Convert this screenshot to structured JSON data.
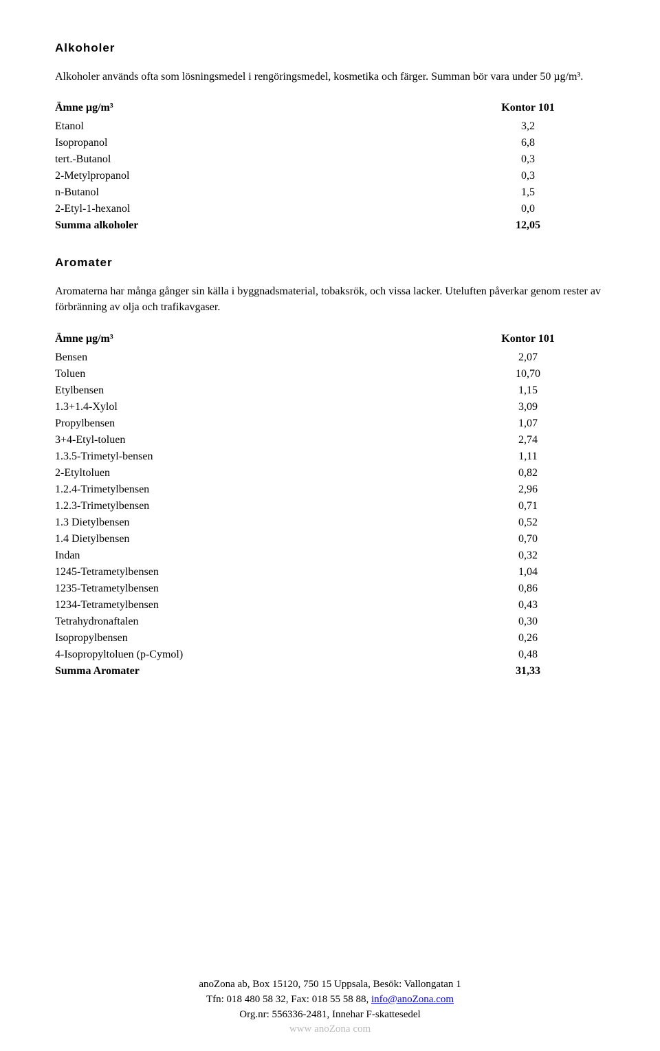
{
  "alkoholer": {
    "title": "Alkoholer",
    "intro": "Alkoholer används ofta som lösningsmedel i rengöringsmedel, kosmetika och färger. Summan bör vara under 50 µg/m³.",
    "header_name": "Ämne µg/m³",
    "header_val": "Kontor 101",
    "rows": [
      {
        "name": "Etanol",
        "val": "3,2"
      },
      {
        "name": "Isopropanol",
        "val": "6,8"
      },
      {
        "name": "tert.-Butanol",
        "val": "0,3"
      },
      {
        "name": "2-Metylpropanol",
        "val": "0,3"
      },
      {
        "name": "n-Butanol",
        "val": "1,5"
      },
      {
        "name": "2-Etyl-1-hexanol",
        "val": "0,0"
      }
    ],
    "sum_name": "Summa alkoholer",
    "sum_val": "12,05"
  },
  "aromater": {
    "title": "Aromater",
    "intro": "Aromaterna har många gånger sin källa i byggnadsmaterial, tobaksrök, och vissa lacker. Uteluften påverkar genom rester av förbränning av olja och trafikavgaser.",
    "header_name": "Ämne µg/m³",
    "header_val": "Kontor 101",
    "rows": [
      {
        "name": "Bensen",
        "val": "2,07"
      },
      {
        "name": "Toluen",
        "val": "10,70"
      },
      {
        "name": "Etylbensen",
        "val": "1,15"
      },
      {
        "name": "1.3+1.4-Xylol",
        "val": "3,09"
      },
      {
        "name": "Propylbensen",
        "val": "1,07"
      },
      {
        "name": "3+4-Etyl-toluen",
        "val": "2,74"
      },
      {
        "name": "1.3.5-Trimetyl-bensen",
        "val": "1,11"
      },
      {
        "name": "2-Etyltoluen",
        "val": "0,82"
      },
      {
        "name": "1.2.4-Trimetylbensen",
        "val": "2,96"
      },
      {
        "name": "1.2.3-Trimetylbensen",
        "val": "0,71"
      },
      {
        "name": "1.3 Dietylbensen",
        "val": "0,52"
      },
      {
        "name": "1.4 Dietylbensen",
        "val": "0,70"
      },
      {
        "name": "Indan",
        "val": "0,32"
      },
      {
        "name": "1245-Tetrametylbensen",
        "val": "1,04"
      },
      {
        "name": "1235-Tetrametylbensen",
        "val": "0,86"
      },
      {
        "name": "1234-Tetrametylbensen",
        "val": "0,43"
      },
      {
        "name": "Tetrahydronaftalen",
        "val": "0,30"
      },
      {
        "name": "Isopropylbensen",
        "val": "0,26"
      },
      {
        "name": "4-Isopropyltoluen (p-Cymol)",
        "val": "0,48"
      }
    ],
    "sum_name": "Summa Aromater",
    "sum_val": "31,33"
  },
  "footer": {
    "line1a": "anoZona ab, Box 15120, 750 15 Uppsala, Besök: Vallongatan 1",
    "line2a": "Tfn: 018 480 58 32, Fax: 018 55 58 88, ",
    "email": "info@anoZona.com",
    "line3": "Org.nr: 556336-2481, Innehar F-skattesedel",
    "cutoff": "www anoZona com"
  }
}
